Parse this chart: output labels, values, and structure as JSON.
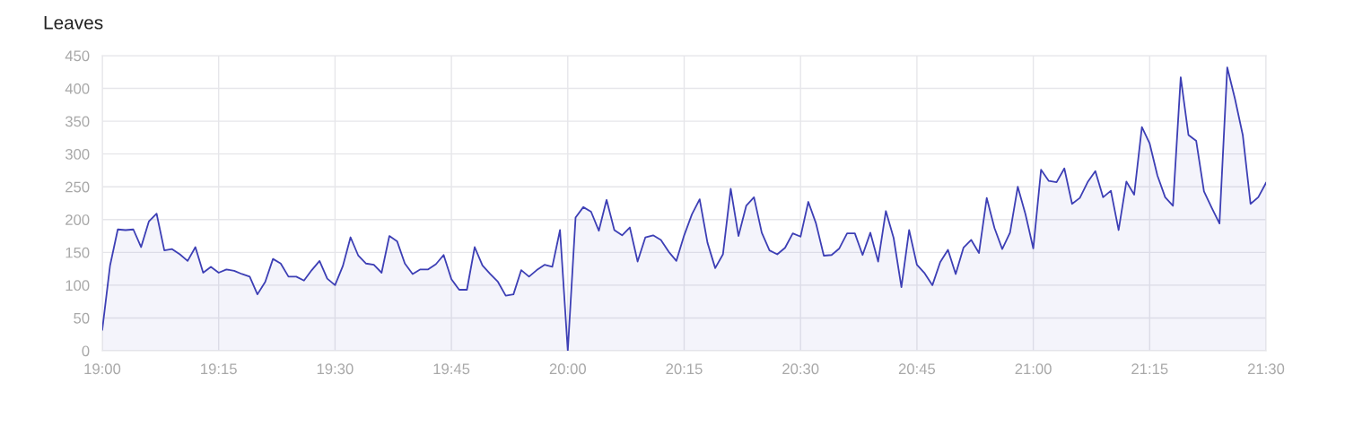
{
  "chart_data": {
    "type": "area",
    "title": "Leaves",
    "x": [
      19,
      19.0167,
      19.0333,
      19.05,
      19.0667,
      19.0833,
      19.1,
      19.1167,
      19.1333,
      19.15,
      19.1667,
      19.1833,
      19.2,
      19.2167,
      19.2333,
      19.25,
      19.2667,
      19.2833,
      19.3,
      19.3167,
      19.3333,
      19.35,
      19.3667,
      19.3833,
      19.4,
      19.4167,
      19.4333,
      19.45,
      19.4667,
      19.4833,
      19.5,
      19.5167,
      19.5333,
      19.55,
      19.5667,
      19.5833,
      19.6,
      19.6167,
      19.6333,
      19.65,
      19.6667,
      19.6833,
      19.7,
      19.7167,
      19.7333,
      19.75,
      19.7667,
      19.7833,
      19.8,
      19.8167,
      19.8333,
      19.85,
      19.8667,
      19.8833,
      19.9,
      19.9167,
      19.9333,
      19.95,
      19.9667,
      19.9833,
      20,
      20.0167,
      20.0333,
      20.05,
      20.0667,
      20.0833,
      20.1,
      20.1167,
      20.1333,
      20.15,
      20.1667,
      20.1833,
      20.2,
      20.2167,
      20.2333,
      20.25,
      20.2667,
      20.2833,
      20.3,
      20.3167,
      20.3333,
      20.35,
      20.3667,
      20.3833,
      20.4,
      20.4167,
      20.4333,
      20.45,
      20.4667,
      20.4833,
      20.5,
      20.5167,
      20.5333,
      20.55,
      20.5667,
      20.5833,
      20.6,
      20.6167,
      20.6333,
      20.65,
      20.6667,
      20.6833,
      20.7,
      20.7167,
      20.7333,
      20.75,
      20.7667,
      20.7833,
      20.8,
      20.8167,
      20.8333,
      20.85,
      20.8667,
      20.8833,
      20.9,
      20.9167,
      20.9333,
      20.95,
      20.9667,
      20.9833,
      21,
      21.0167,
      21.0333,
      21.05,
      21.0667,
      21.0833,
      21.1,
      21.1167,
      21.1333,
      21.15,
      21.1667,
      21.1833,
      21.2,
      21.2167,
      21.2333,
      21.25,
      21.2667,
      21.2833,
      21.3,
      21.3167,
      21.3333,
      21.35,
      21.3667,
      21.3833,
      21.4,
      21.4167,
      21.4333,
      21.45,
      21.4667,
      21.4833,
      21.5
    ],
    "series": [
      {
        "color": "#3d3fb5",
        "values": [
          32,
          130,
          185,
          184,
          185,
          158,
          197,
          209,
          153,
          155,
          147,
          137,
          158,
          119,
          128,
          119,
          124,
          122,
          117,
          113,
          86,
          105,
          140,
          133,
          113,
          113,
          107,
          123,
          137,
          110,
          100,
          129,
          173,
          145,
          133,
          131,
          119,
          175,
          167,
          133,
          117,
          124,
          124,
          132,
          146,
          109,
          93,
          93,
          158,
          130,
          117,
          105,
          84,
          86,
          123,
          113,
          123,
          131,
          128,
          184,
          0,
          203,
          219,
          212,
          183,
          230,
          184,
          176,
          188,
          136,
          173,
          176,
          169,
          151,
          137,
          176,
          208,
          231,
          165,
          126,
          147,
          247,
          175,
          221,
          234,
          180,
          153,
          147,
          157,
          179,
          174,
          227,
          194,
          145,
          146,
          156,
          179,
          179,
          146,
          180,
          136,
          213,
          172,
          97,
          184,
          131,
          118,
          100,
          135,
          154,
          117,
          157,
          169,
          149,
          233,
          187,
          155,
          180,
          250,
          208,
          156,
          276,
          259,
          257,
          278,
          224,
          233,
          257,
          274,
          234,
          244,
          184,
          258,
          238,
          341,
          316,
          267,
          234,
          221,
          417,
          329,
          320,
          243,
          218,
          194,
          432,
          384,
          329,
          224,
          234,
          256
        ]
      }
    ],
    "xlim": [
      19,
      21.5
    ],
    "xticks": [
      {
        "value": 19,
        "label": "19:00"
      },
      {
        "value": 19.25,
        "label": "19:15"
      },
      {
        "value": 19.5,
        "label": "19:30"
      },
      {
        "value": 19.75,
        "label": "19:45"
      },
      {
        "value": 20,
        "label": "20:00"
      },
      {
        "value": 20.25,
        "label": "20:15"
      },
      {
        "value": 20.5,
        "label": "20:30"
      },
      {
        "value": 20.75,
        "label": "20:45"
      },
      {
        "value": 21,
        "label": "21:00"
      },
      {
        "value": 21.25,
        "label": "21:15"
      },
      {
        "value": 21.5,
        "label": "21:30"
      }
    ],
    "ylim": [
      0,
      450
    ],
    "yticks": [
      0,
      50,
      100,
      150,
      200,
      250,
      300,
      350,
      400,
      450
    ],
    "grid": true,
    "legend": false,
    "marker": "none",
    "line_style": "solid"
  }
}
